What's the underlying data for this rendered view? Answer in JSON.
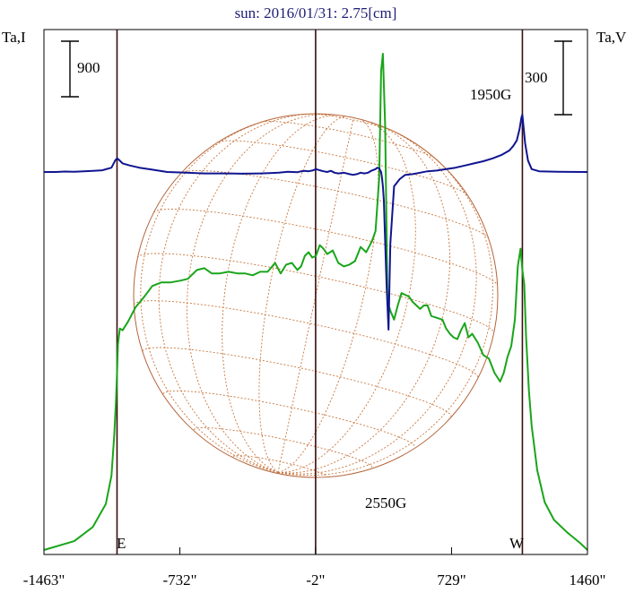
{
  "chart_data": {
    "type": "line",
    "title": "sun: 2016/01/31: 2.75[cm]",
    "left_axis_label": "Ta,I",
    "right_axis_label": "Ta,V",
    "left_scale_bar": "900",
    "right_scale_bar": "300",
    "x_ticks": [
      "-1463\"",
      "-732\"",
      "-2\"",
      "729\"",
      "1460\""
    ],
    "x_tick_values": [
      -1463,
      -732,
      -2,
      729,
      1460
    ],
    "xlim": [
      -1463,
      1460
    ],
    "vertical_markers": [
      -1070,
      -2,
      1110
    ],
    "limb_labels": {
      "east": "E",
      "west": "W"
    },
    "annotations": [
      {
        "text": "1950G",
        "x": 1110
      },
      {
        "text": "2550G",
        "x": 470
      }
    ],
    "series": [
      {
        "key": "I",
        "color": "#1aa51a",
        "x": [
          -1463,
          -1300,
          -1200,
          -1130,
          -1100,
          -1085,
          -1075,
          -1070,
          -1065,
          -1055,
          -1040,
          -1010,
          -970,
          -930,
          -880,
          -830,
          -780,
          -730,
          -690,
          -640,
          -600,
          -560,
          -520,
          -470,
          -420,
          -380,
          -340,
          -300,
          -260,
          -220,
          -190,
          -160,
          -130,
          -100,
          -80,
          -60,
          -40,
          -20,
          0,
          20,
          40,
          60,
          90,
          120,
          150,
          180,
          210,
          240,
          270,
          300,
          320,
          340,
          350,
          360,
          372,
          385,
          400,
          420,
          440,
          460,
          480,
          500,
          520,
          540,
          560,
          580,
          600,
          620,
          650,
          680,
          700,
          720,
          740,
          760,
          780,
          800,
          820,
          840,
          870,
          900,
          930,
          960,
          990,
          1010,
          1030,
          1050,
          1070,
          1085,
          1100,
          1110,
          1120,
          1130,
          1145,
          1160,
          1190,
          1230,
          1280,
          1350,
          1420,
          1460
        ],
        "y": [
          0,
          50,
          130,
          260,
          420,
          650,
          850,
          1000,
          1160,
          1250,
          1240,
          1290,
          1370,
          1420,
          1490,
          1510,
          1510,
          1520,
          1530,
          1580,
          1590,
          1560,
          1560,
          1570,
          1560,
          1560,
          1550,
          1570,
          1570,
          1620,
          1560,
          1610,
          1620,
          1580,
          1600,
          1660,
          1680,
          1650,
          1660,
          1720,
          1700,
          1670,
          1690,
          1620,
          1600,
          1610,
          1630,
          1710,
          1680,
          1740,
          1800,
          2100,
          2700,
          2800,
          2400,
          1400,
          1350,
          1300,
          1380,
          1450,
          1440,
          1430,
          1400,
          1380,
          1360,
          1380,
          1380,
          1320,
          1310,
          1300,
          1250,
          1220,
          1200,
          1190,
          1240,
          1280,
          1200,
          1220,
          1170,
          1100,
          1080,
          1000,
          950,
          1000,
          1090,
          1150,
          1300,
          1600,
          1700,
          1580,
          1500,
          1200,
          900,
          700,
          450,
          270,
          170,
          100,
          40,
          0
        ]
      },
      {
        "key": "V",
        "color": "#101590",
        "x": [
          -1463,
          -1400,
          -1350,
          -1300,
          -1250,
          -1200,
          -1150,
          -1100,
          -1080,
          -1070,
          -1060,
          -1040,
          -1000,
          -950,
          -900,
          -850,
          -800,
          -700,
          -600,
          -500,
          -400,
          -300,
          -250,
          -200,
          -150,
          -100,
          -80,
          -60,
          -40,
          -20,
          0,
          20,
          40,
          60,
          80,
          100,
          120,
          150,
          180,
          200,
          220,
          240,
          260,
          280,
          300,
          320,
          330,
          340,
          350,
          355,
          360,
          365,
          370,
          380,
          390,
          400,
          420,
          450,
          480,
          520,
          560,
          600,
          650,
          700,
          750,
          800,
          850,
          900,
          950,
          1000,
          1040,
          1060,
          1080,
          1095,
          1105,
          1110,
          1115,
          1125,
          1140,
          1160,
          1200,
          1300,
          1460
        ],
        "y": [
          0,
          0,
          3,
          2,
          5,
          8,
          12,
          30,
          80,
          95,
          85,
          60,
          45,
          30,
          20,
          10,
          0,
          -5,
          -10,
          -10,
          -12,
          -10,
          -8,
          -5,
          2,
          -2,
          5,
          8,
          5,
          10,
          20,
          12,
          5,
          0,
          8,
          -5,
          -10,
          -5,
          -15,
          -20,
          -15,
          -5,
          -10,
          -5,
          10,
          20,
          30,
          25,
          0,
          -40,
          -100,
          -200,
          -400,
          -800,
          -1100,
          -500,
          -100,
          -50,
          -20,
          -15,
          -5,
          5,
          10,
          20,
          30,
          45,
          60,
          75,
          95,
          120,
          150,
          180,
          220,
          300,
          380,
          400,
          330,
          200,
          80,
          20,
          5,
          2,
          0
        ]
      }
    ]
  }
}
